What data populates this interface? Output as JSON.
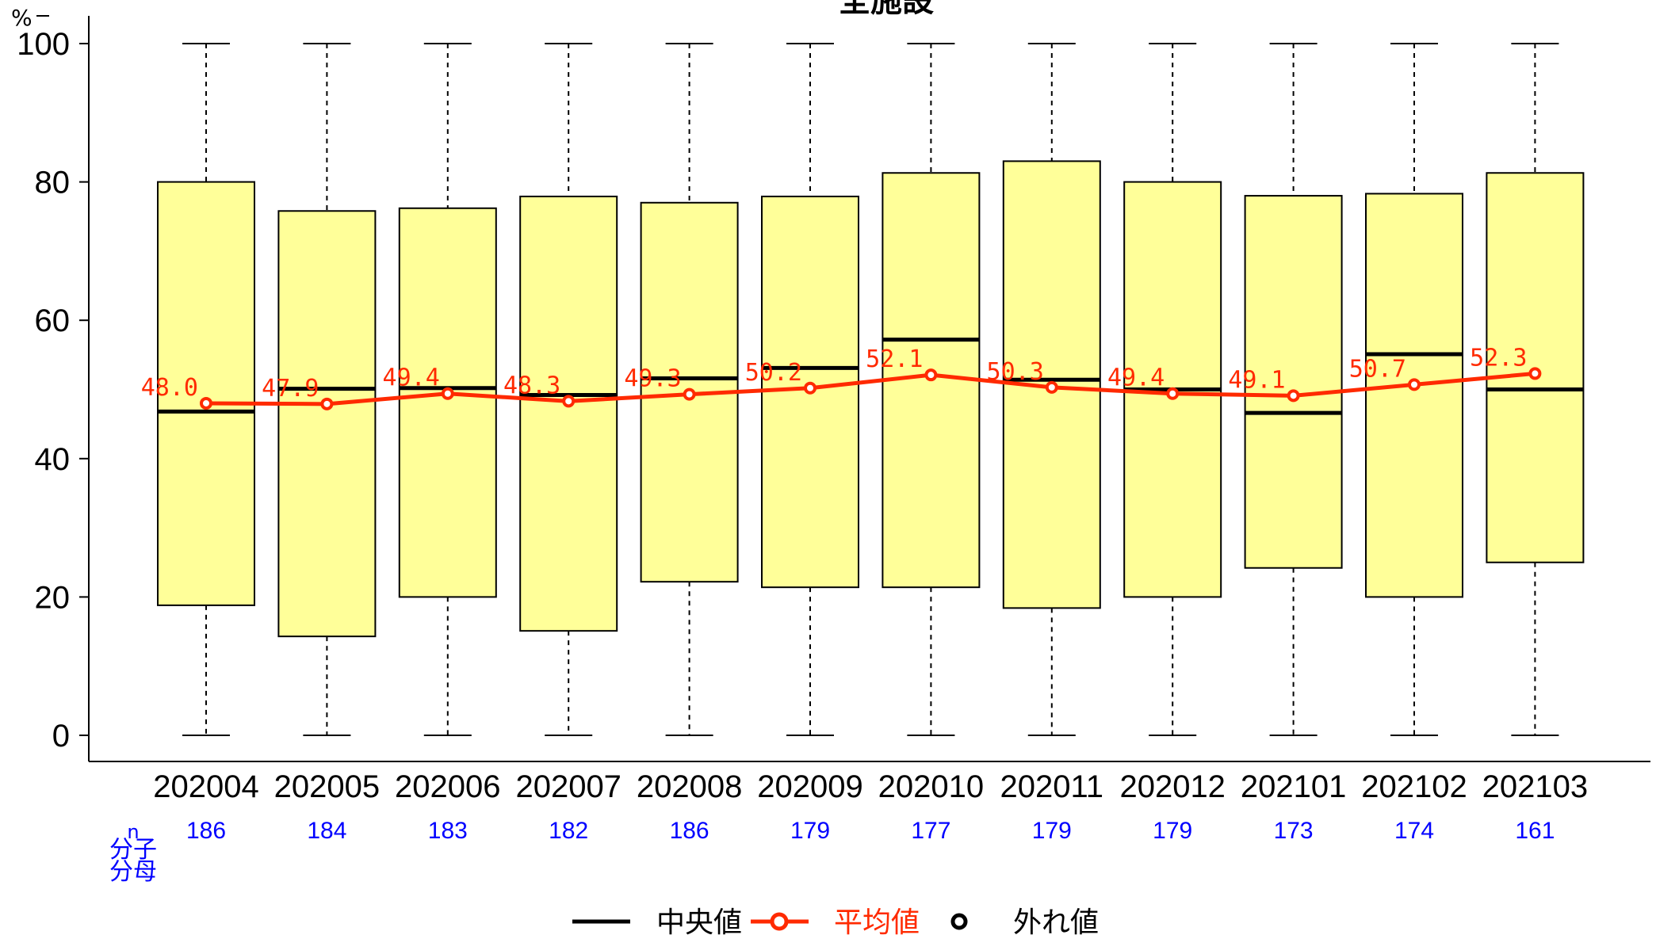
{
  "chart_data": {
    "type": "boxplot",
    "title": "全施設",
    "yunit": "%",
    "ylim": [
      0,
      100
    ],
    "yticks": [
      0,
      20,
      40,
      60,
      80,
      100
    ],
    "categories": [
      "202004",
      "202005",
      "202006",
      "202007",
      "202008",
      "202009",
      "202010",
      "202011",
      "202012",
      "202101",
      "202102",
      "202103"
    ],
    "boxes": [
      {
        "min": 0,
        "q1": 18.8,
        "median": 46.8,
        "q3": 80.0,
        "max": 100,
        "mean": 48.0,
        "mean_label": "48.0",
        "n": "186"
      },
      {
        "min": 0,
        "q1": 14.3,
        "median": 50.1,
        "q3": 75.8,
        "max": 100,
        "mean": 47.9,
        "mean_label": "47.9",
        "n": "184"
      },
      {
        "min": 0,
        "q1": 20.0,
        "median": 50.2,
        "q3": 76.2,
        "max": 100,
        "mean": 49.4,
        "mean_label": "49.4",
        "n": "183"
      },
      {
        "min": 0,
        "q1": 15.1,
        "median": 49.2,
        "q3": 77.9,
        "max": 100,
        "mean": 48.3,
        "mean_label": "48.3",
        "n": "182"
      },
      {
        "min": 0,
        "q1": 22.2,
        "median": 51.6,
        "q3": 77.0,
        "max": 100,
        "mean": 49.3,
        "mean_label": "49.3",
        "n": "186"
      },
      {
        "min": 0,
        "q1": 21.4,
        "median": 53.1,
        "q3": 77.9,
        "max": 100,
        "mean": 50.2,
        "mean_label": "50.2",
        "n": "179"
      },
      {
        "min": 0,
        "q1": 21.4,
        "median": 57.2,
        "q3": 81.3,
        "max": 100,
        "mean": 52.1,
        "mean_label": "52.1",
        "n": "177"
      },
      {
        "min": 0,
        "q1": 18.4,
        "median": 51.4,
        "q3": 83.0,
        "max": 100,
        "mean": 50.3,
        "mean_label": "50.3",
        "n": "179"
      },
      {
        "min": 0,
        "q1": 20.0,
        "median": 50.0,
        "q3": 80.0,
        "max": 100,
        "mean": 49.4,
        "mean_label": "49.4",
        "n": "179"
      },
      {
        "min": 0,
        "q1": 24.2,
        "median": 46.6,
        "q3": 78.0,
        "max": 100,
        "mean": 49.1,
        "mean_label": "49.1",
        "n": "173"
      },
      {
        "min": 0,
        "q1": 20.0,
        "median": 55.1,
        "q3": 78.3,
        "max": 100,
        "mean": 50.7,
        "mean_label": "50.7",
        "n": "174"
      },
      {
        "min": 0,
        "q1": 25.0,
        "median": 50.0,
        "q3": 81.3,
        "max": 100,
        "mean": 52.3,
        "mean_label": "52.3",
        "n": "161"
      }
    ],
    "n_row_labels": [
      "n",
      "分子",
      "分母"
    ],
    "legend": {
      "position": "bottom",
      "items": [
        "中央値",
        "平均値",
        "外れ値"
      ]
    },
    "colors": {
      "box_fill": "#ffff99",
      "box_stroke": "#000000",
      "median": "#000000",
      "mean": "#ff2a00",
      "n_text": "#0000ff"
    }
  }
}
